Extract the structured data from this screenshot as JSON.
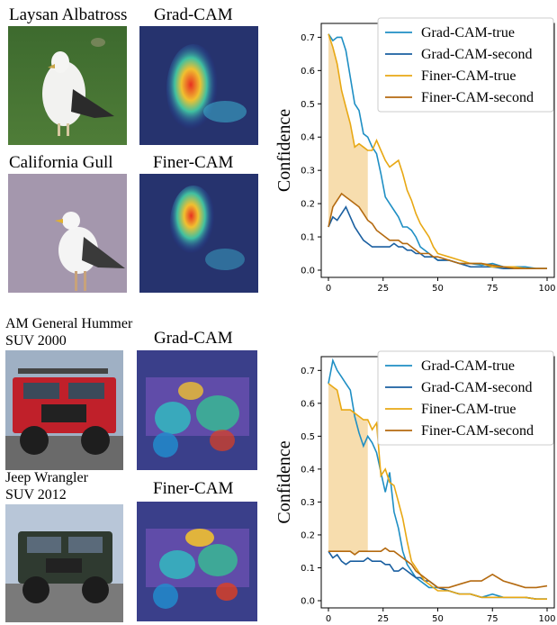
{
  "panels": [
    {
      "img1_label": "Laysan Albatross",
      "img2_label": "California Gull",
      "gradcam_label": "Grad-CAM",
      "finercam_label": "Finer-CAM"
    },
    {
      "img1_label_line1": "AM General Hummer",
      "img1_label_line2": "SUV 2000",
      "img2_label_line1": "Jeep Wrangler",
      "img2_label_line2": "SUV 2012",
      "gradcam_label": "Grad-CAM",
      "finercam_label": "Finer-CAM"
    }
  ],
  "chart_data": [
    {
      "type": "line",
      "ylabel": "Confidence",
      "xlabel": "",
      "xlim": [
        0,
        100
      ],
      "ylim": [
        0,
        0.72
      ],
      "xticks": [
        "0",
        "25",
        "50",
        "75",
        "100"
      ],
      "yticks": [
        "0.0",
        "0.1",
        "0.2",
        "0.3",
        "0.4",
        "0.5",
        "0.6",
        "0.7"
      ],
      "legend_position": "top-right",
      "shaded_region": {
        "x_start": 0,
        "x_end": 19,
        "upper": "Finer-CAM-true",
        "lower": "Finer-CAM-second",
        "color": "#f5d49a"
      },
      "series": [
        {
          "name": "Grad-CAM-true",
          "color": "#1f8fc4",
          "x": [
            0,
            2,
            4,
            6,
            8,
            10,
            12,
            14,
            16,
            18,
            20,
            22,
            24,
            26,
            28,
            30,
            32,
            34,
            36,
            38,
            40,
            42,
            44,
            46,
            48,
            50,
            55,
            60,
            65,
            70,
            75,
            80,
            85,
            90,
            95,
            100
          ],
          "y": [
            0.71,
            0.69,
            0.7,
            0.7,
            0.66,
            0.58,
            0.5,
            0.48,
            0.41,
            0.4,
            0.37,
            0.35,
            0.29,
            0.22,
            0.2,
            0.18,
            0.16,
            0.13,
            0.13,
            0.12,
            0.1,
            0.07,
            0.06,
            0.05,
            0.04,
            0.03,
            0.03,
            0.02,
            0.02,
            0.015,
            0.02,
            0.01,
            0.01,
            0.01,
            0.005,
            0.005
          ]
        },
        {
          "name": "Grad-CAM-second",
          "color": "#1a5fa0",
          "x": [
            0,
            2,
            4,
            6,
            8,
            10,
            12,
            14,
            16,
            18,
            20,
            22,
            24,
            26,
            28,
            30,
            32,
            34,
            36,
            38,
            40,
            42,
            44,
            46,
            48,
            50,
            55,
            60,
            65,
            70,
            75,
            80,
            85,
            90,
            95,
            100
          ],
          "y": [
            0.13,
            0.16,
            0.15,
            0.17,
            0.19,
            0.16,
            0.13,
            0.11,
            0.09,
            0.08,
            0.07,
            0.07,
            0.07,
            0.07,
            0.07,
            0.08,
            0.07,
            0.07,
            0.06,
            0.06,
            0.05,
            0.05,
            0.04,
            0.04,
            0.04,
            0.03,
            0.03,
            0.02,
            0.01,
            0.01,
            0.01,
            0.005,
            0.005,
            0.005,
            0.005,
            0.005
          ]
        },
        {
          "name": "Finer-CAM-true",
          "color": "#e8a814",
          "x": [
            0,
            2,
            4,
            6,
            8,
            10,
            12,
            14,
            16,
            18,
            20,
            22,
            24,
            26,
            28,
            30,
            32,
            34,
            36,
            38,
            40,
            42,
            44,
            46,
            48,
            50,
            55,
            60,
            65,
            70,
            75,
            80,
            85,
            90,
            95,
            100
          ],
          "y": [
            0.71,
            0.67,
            0.62,
            0.54,
            0.49,
            0.44,
            0.37,
            0.38,
            0.37,
            0.36,
            0.36,
            0.39,
            0.36,
            0.33,
            0.31,
            0.32,
            0.33,
            0.29,
            0.24,
            0.21,
            0.17,
            0.14,
            0.12,
            0.1,
            0.07,
            0.05,
            0.04,
            0.03,
            0.02,
            0.02,
            0.01,
            0.01,
            0.01,
            0.005,
            0.005,
            0.005
          ]
        },
        {
          "name": "Finer-CAM-second",
          "color": "#b46a10",
          "x": [
            0,
            2,
            4,
            6,
            8,
            10,
            12,
            14,
            16,
            18,
            20,
            22,
            24,
            26,
            28,
            30,
            32,
            34,
            36,
            38,
            40,
            42,
            44,
            46,
            48,
            50,
            55,
            60,
            65,
            70,
            75,
            80,
            85,
            90,
            95,
            100
          ],
          "y": [
            0.13,
            0.19,
            0.21,
            0.23,
            0.22,
            0.21,
            0.2,
            0.19,
            0.17,
            0.15,
            0.14,
            0.12,
            0.11,
            0.1,
            0.09,
            0.09,
            0.09,
            0.08,
            0.08,
            0.07,
            0.06,
            0.05,
            0.05,
            0.05,
            0.04,
            0.04,
            0.03,
            0.02,
            0.02,
            0.02,
            0.015,
            0.01,
            0.005,
            0.005,
            0.005,
            0.005
          ]
        }
      ]
    },
    {
      "type": "line",
      "ylabel": "Confidence",
      "xlabel": "",
      "xlim": [
        0,
        100
      ],
      "ylim": [
        0,
        0.72
      ],
      "xticks": [
        "0",
        "25",
        "50",
        "75",
        "100"
      ],
      "yticks": [
        "0.0",
        "0.1",
        "0.2",
        "0.3",
        "0.4",
        "0.5",
        "0.6",
        "0.7"
      ],
      "legend_position": "top-right",
      "shaded_region": {
        "x_start": 0,
        "x_end": 19,
        "upper": "Finer-CAM-true",
        "lower": "Finer-CAM-second",
        "color": "#f5d49a"
      },
      "series": [
        {
          "name": "Grad-CAM-true",
          "color": "#1f8fc4",
          "x": [
            0,
            2,
            4,
            6,
            8,
            10,
            12,
            14,
            16,
            18,
            20,
            22,
            24,
            26,
            28,
            30,
            32,
            34,
            36,
            38,
            40,
            42,
            44,
            46,
            48,
            50,
            55,
            60,
            65,
            70,
            75,
            80,
            85,
            90,
            95,
            100
          ],
          "y": [
            0.66,
            0.73,
            0.7,
            0.68,
            0.66,
            0.64,
            0.56,
            0.51,
            0.47,
            0.5,
            0.48,
            0.45,
            0.39,
            0.33,
            0.39,
            0.27,
            0.22,
            0.15,
            0.11,
            0.09,
            0.07,
            0.06,
            0.05,
            0.04,
            0.04,
            0.04,
            0.03,
            0.02,
            0.02,
            0.01,
            0.02,
            0.01,
            0.01,
            0.01,
            0.005,
            0.005
          ]
        },
        {
          "name": "Grad-CAM-second",
          "color": "#1a5fa0",
          "x": [
            0,
            2,
            4,
            6,
            8,
            10,
            12,
            14,
            16,
            18,
            20,
            22,
            24,
            26,
            28,
            30,
            32,
            34,
            36,
            38,
            40,
            42,
            44,
            46,
            48,
            50,
            55,
            60,
            65,
            70,
            75,
            80,
            85,
            90,
            95,
            100
          ],
          "y": [
            0.15,
            0.13,
            0.14,
            0.12,
            0.11,
            0.12,
            0.12,
            0.12,
            0.12,
            0.13,
            0.12,
            0.12,
            0.12,
            0.11,
            0.11,
            0.09,
            0.09,
            0.1,
            0.09,
            0.08,
            0.07,
            0.07,
            0.06,
            0.06,
            0.05,
            0.04,
            0.03,
            0.02,
            0.02,
            0.01,
            0.01,
            0.01,
            0.01,
            0.01,
            0.005,
            0.005
          ]
        },
        {
          "name": "Finer-CAM-true",
          "color": "#e8a814",
          "x": [
            0,
            2,
            4,
            6,
            8,
            10,
            12,
            14,
            16,
            18,
            20,
            22,
            24,
            26,
            28,
            30,
            32,
            34,
            36,
            38,
            40,
            42,
            44,
            46,
            48,
            50,
            55,
            60,
            65,
            70,
            75,
            80,
            85,
            90,
            95,
            100
          ],
          "y": [
            0.66,
            0.65,
            0.64,
            0.58,
            0.58,
            0.58,
            0.57,
            0.56,
            0.55,
            0.55,
            0.52,
            0.54,
            0.38,
            0.4,
            0.36,
            0.35,
            0.3,
            0.25,
            0.18,
            0.12,
            0.1,
            0.08,
            0.06,
            0.05,
            0.04,
            0.03,
            0.03,
            0.02,
            0.02,
            0.01,
            0.01,
            0.01,
            0.01,
            0.01,
            0.005,
            0.005
          ]
        },
        {
          "name": "Finer-CAM-second",
          "color": "#b46a10",
          "x": [
            0,
            2,
            4,
            6,
            8,
            10,
            12,
            14,
            16,
            18,
            20,
            22,
            24,
            26,
            28,
            30,
            32,
            34,
            36,
            38,
            40,
            42,
            44,
            46,
            48,
            50,
            55,
            60,
            65,
            70,
            75,
            80,
            85,
            90,
            95,
            100
          ],
          "y": [
            0.15,
            0.15,
            0.15,
            0.15,
            0.15,
            0.15,
            0.14,
            0.15,
            0.15,
            0.15,
            0.15,
            0.15,
            0.15,
            0.16,
            0.15,
            0.15,
            0.14,
            0.13,
            0.12,
            0.11,
            0.09,
            0.08,
            0.07,
            0.06,
            0.05,
            0.04,
            0.04,
            0.05,
            0.06,
            0.06,
            0.08,
            0.06,
            0.05,
            0.04,
            0.04,
            0.045
          ]
        }
      ]
    }
  ]
}
